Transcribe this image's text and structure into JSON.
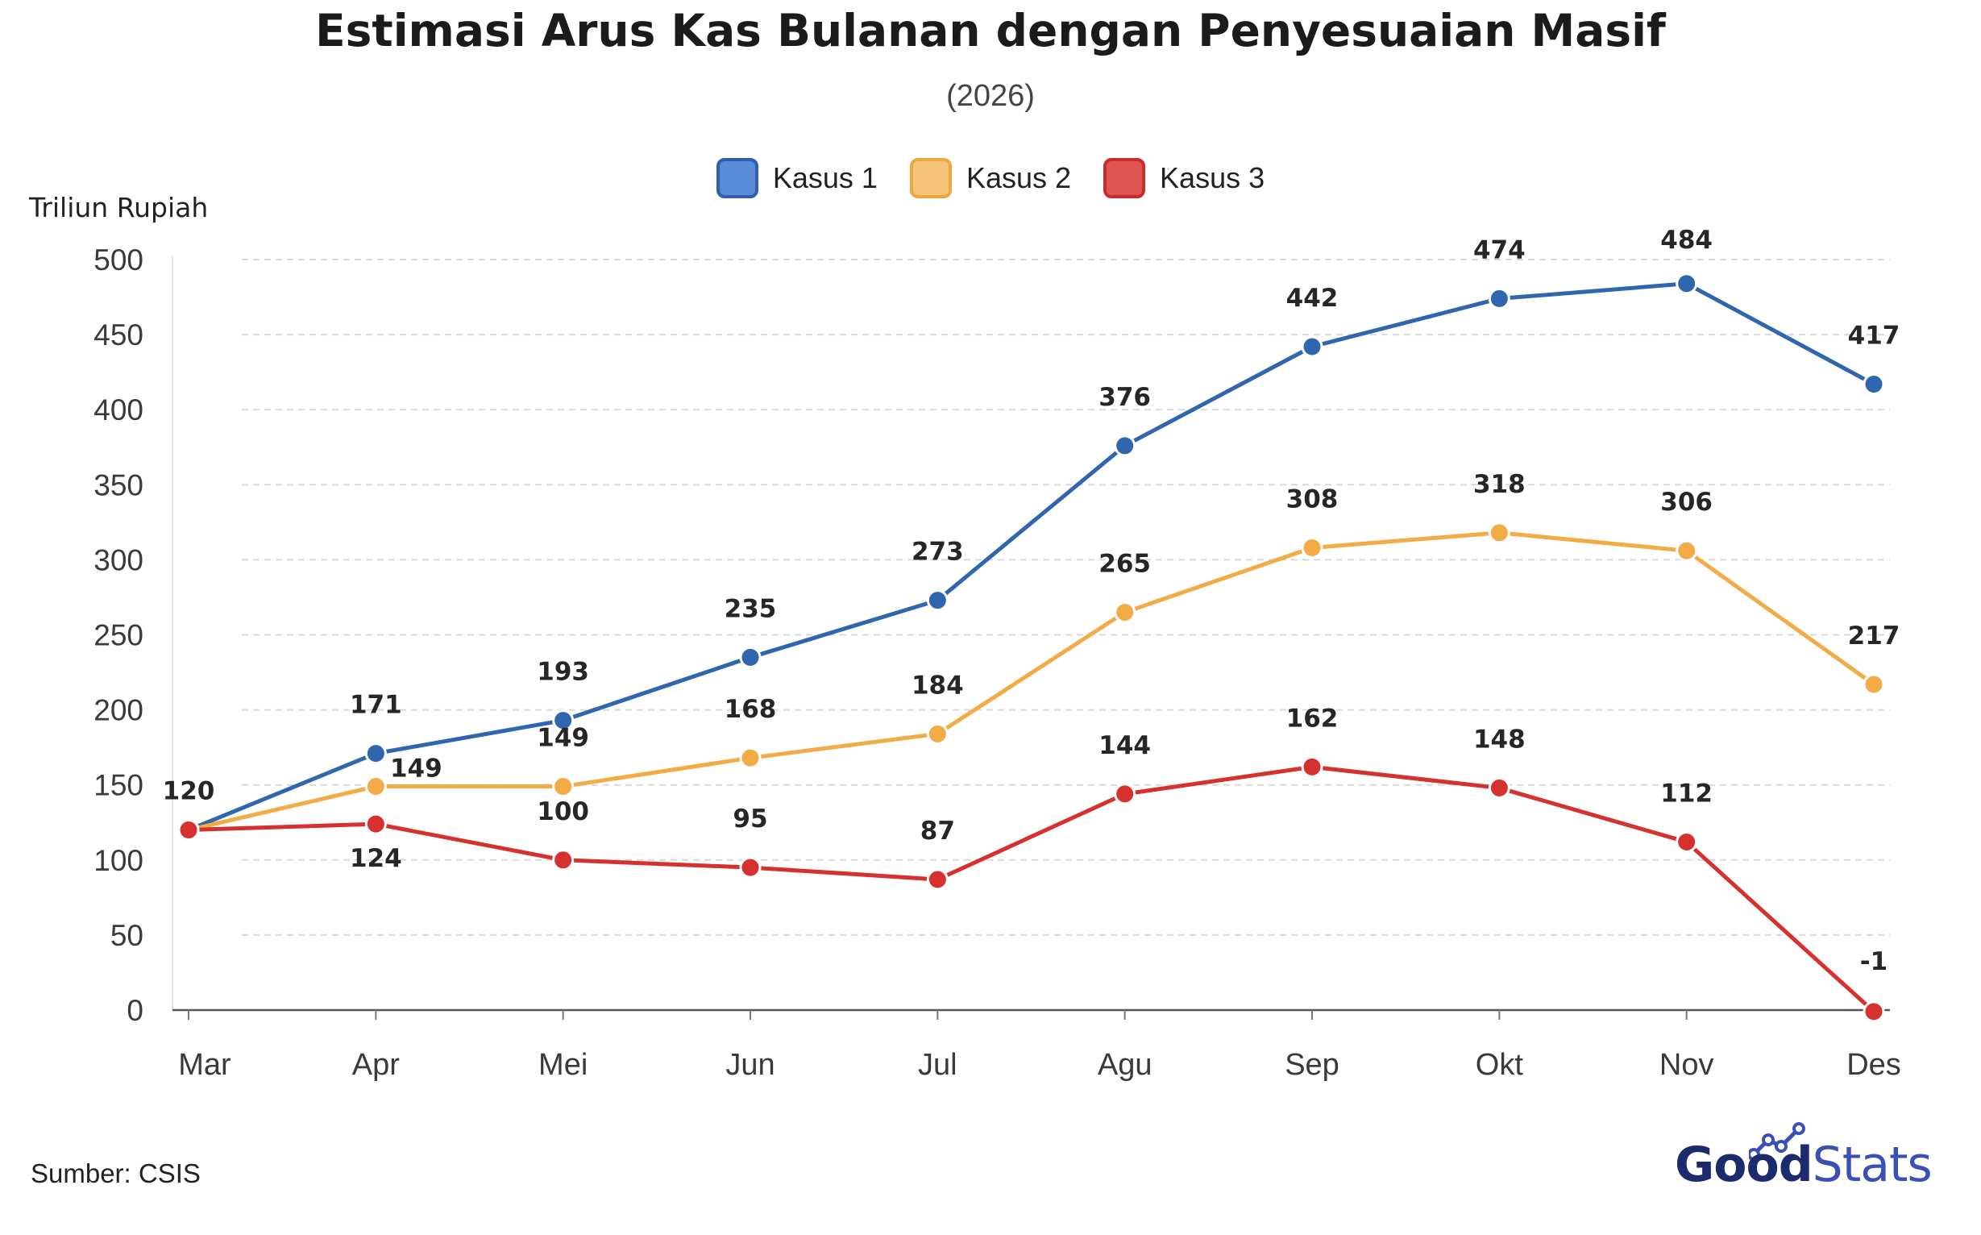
{
  "chart_data": {
    "type": "line",
    "title": "Estimasi Arus Kas Bulanan dengan Penyesuaian Masif",
    "subtitle": "(2026)",
    "ylabel": "Triliun Rupiah",
    "xlabel": "",
    "categories": [
      "Mar",
      "Apr",
      "Mei",
      "Jun",
      "Jul",
      "Agu",
      "Sep",
      "Okt",
      "Nov",
      "Des"
    ],
    "ylim": [
      0,
      500
    ],
    "yticks": [
      0,
      50,
      100,
      150,
      200,
      250,
      300,
      350,
      400,
      450,
      500
    ],
    "grid": true,
    "legend_position": "top-center",
    "series": [
      {
        "name": "Kasus 1",
        "color": "#2f66ad",
        "values": [
          120,
          171,
          193,
          235,
          273,
          376,
          442,
          474,
          484,
          417
        ]
      },
      {
        "name": "Kasus 2",
        "color": "#f2ab45",
        "values": [
          120,
          149,
          149,
          168,
          184,
          265,
          308,
          318,
          306,
          217
        ]
      },
      {
        "name": "Kasus 3",
        "color": "#d6302f",
        "values": [
          120,
          124,
          100,
          95,
          87,
          144,
          162,
          148,
          112,
          -1
        ]
      }
    ]
  },
  "source": "Sumber: CSIS",
  "brand": {
    "part1": "Good",
    "part2": "Stats",
    "icon": "goodstats-logo-icon"
  }
}
